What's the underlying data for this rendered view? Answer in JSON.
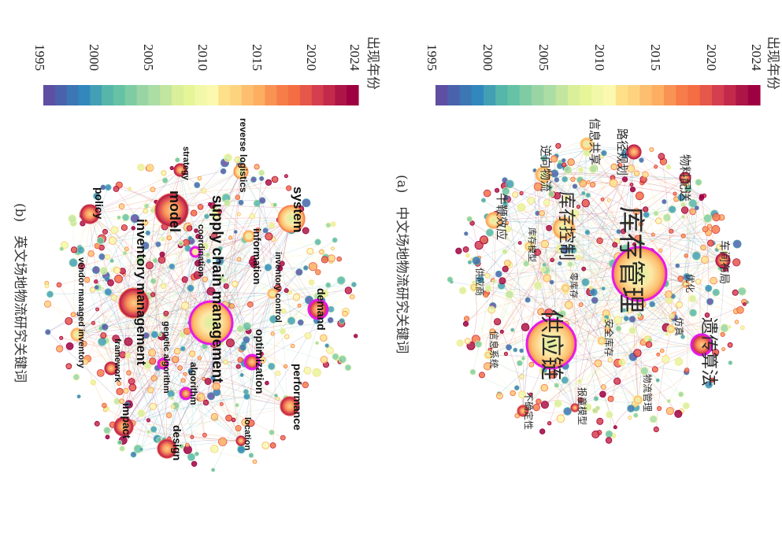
{
  "figure": {
    "panels": [
      {
        "id": "a",
        "caption": "(a)　中文场地物流研究关键词",
        "legend": {
          "title": "出现年份",
          "ticks": [
            "1995",
            "2000",
            "2005",
            "2010",
            "2015",
            "2020",
            "2024"
          ],
          "min_year": 1995,
          "max_year": 2024,
          "colors": [
            "#5e4fa2",
            "#4a62ab",
            "#3c76b3",
            "#3288bd",
            "#439fb4",
            "#56b6aa",
            "#66c2a5",
            "#7fcca4",
            "#99d5a4",
            "#abdda4",
            "#c2e5a0",
            "#d9ef9a",
            "#e6f598",
            "#f1f9a9",
            "#fbf8b0",
            "#fee08b",
            "#fed380",
            "#fdbe6f",
            "#fdae61",
            "#f99353",
            "#f67c4a",
            "#f46d43",
            "#e55749",
            "#d53e4f",
            "#c2294b",
            "#ad1547",
            "#9e0142"
          ]
        },
        "keywords": [
          {
            "label": "库存管理",
            "weight": 5,
            "year": 2008,
            "burst": true
          },
          {
            "label": "供应链",
            "weight": 4,
            "year": 2009,
            "burst": true
          },
          {
            "label": "库存控制",
            "weight": 3,
            "year": 2013
          },
          {
            "label": "遗传算法",
            "weight": 3,
            "year": 2022,
            "burst": true
          },
          {
            "label": "路径规划",
            "weight": 2,
            "year": 2022
          },
          {
            "label": "物料配送",
            "weight": 2,
            "year": 2023
          },
          {
            "label": "车间布局",
            "weight": 2,
            "year": 2023
          },
          {
            "label": "信息共享",
            "weight": 2,
            "year": 2012
          },
          {
            "label": "逆向物流",
            "weight": 2,
            "year": 2013
          },
          {
            "label": "牛鞭效应",
            "weight": 2,
            "year": 2015
          },
          {
            "label": "库存模型",
            "weight": 1,
            "year": 2011
          },
          {
            "label": "零库存",
            "weight": 1,
            "year": 2012
          },
          {
            "label": "优化",
            "weight": 1,
            "year": 2016
          },
          {
            "label": "仿真",
            "weight": 1,
            "year": 2012
          },
          {
            "label": "安全库存",
            "weight": 1,
            "year": 2012
          },
          {
            "label": "供应商",
            "weight": 1,
            "year": 2010
          },
          {
            "label": "信息系统",
            "weight": 1,
            "year": 2009
          },
          {
            "label": "物流管理",
            "weight": 1,
            "year": 2011
          },
          {
            "label": "报童模型",
            "weight": 1,
            "year": 2021
          },
          {
            "label": "不确定性",
            "weight": 1,
            "year": 2019
          }
        ]
      },
      {
        "id": "b",
        "caption": "(b)　英文场地物流研究关键词",
        "legend": {
          "title": "出现年份",
          "ticks": [
            "1995",
            "2000",
            "2005",
            "2010",
            "2015",
            "2020",
            "2024"
          ],
          "min_year": 1995,
          "max_year": 2024
        },
        "keywords": [
          {
            "label": "supply chain management",
            "weight": 5,
            "year": 2010,
            "burst": true
          },
          {
            "label": "inventory management",
            "weight": 4,
            "year": 2018
          },
          {
            "label": "model",
            "weight": 4,
            "year": 2019
          },
          {
            "label": "system",
            "weight": 3,
            "year": 2017
          },
          {
            "label": "demand",
            "weight": 2,
            "year": 2019,
            "burst": true
          },
          {
            "label": "performance",
            "weight": 2,
            "year": 2020
          },
          {
            "label": "impact",
            "weight": 2,
            "year": 2021
          },
          {
            "label": "design",
            "weight": 2,
            "year": 2020
          },
          {
            "label": "policy",
            "weight": 2,
            "year": 2021
          },
          {
            "label": "optimization",
            "weight": 2,
            "year": 2021,
            "burst": true
          },
          {
            "label": "algorithm",
            "weight": 1,
            "year": 2021,
            "burst": true
          },
          {
            "label": "genetic algorithm",
            "weight": 1,
            "year": 2020,
            "burst": true
          },
          {
            "label": "information",
            "weight": 1,
            "year": 2015
          },
          {
            "label": "inventory control",
            "weight": 1,
            "year": 2014
          },
          {
            "label": "coordination",
            "weight": 1,
            "year": 2012,
            "burst": true
          },
          {
            "label": "reverse logistics",
            "weight": 1,
            "year": 2016
          },
          {
            "label": "strategy",
            "weight": 1,
            "year": 2022
          },
          {
            "label": "framework",
            "weight": 1,
            "year": 2022
          },
          {
            "label": "location",
            "weight": 1,
            "year": 2022
          },
          {
            "label": "vendor managed inventory",
            "weight": 1,
            "year": 2014
          }
        ]
      }
    ]
  }
}
